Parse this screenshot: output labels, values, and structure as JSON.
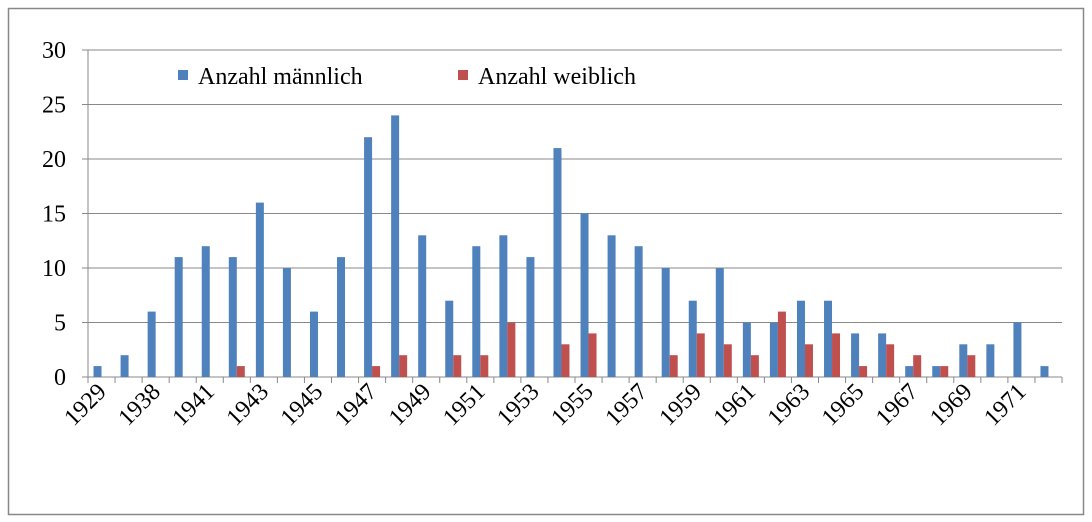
{
  "chart_data": {
    "type": "bar",
    "categories": [
      "1929",
      null,
      "1938",
      null,
      "1941",
      null,
      "1943",
      null,
      "1945",
      null,
      "1947",
      null,
      "1949",
      null,
      "1951",
      null,
      "1953",
      null,
      "1955",
      null,
      "1957",
      null,
      "1959",
      null,
      "1961",
      null,
      "1963",
      null,
      "1965",
      null,
      "1967",
      null,
      "1969",
      null,
      "1971",
      null
    ],
    "series": [
      {
        "name": "Anzahl männlich",
        "color": "#4f81bd",
        "values": [
          1,
          2,
          6,
          11,
          12,
          11,
          16,
          10,
          6,
          11,
          22,
          24,
          13,
          7,
          12,
          13,
          11,
          21,
          15,
          13,
          12,
          10,
          7,
          10,
          5,
          5,
          7,
          7,
          4,
          4,
          1,
          1,
          3,
          3,
          5,
          1
        ]
      },
      {
        "name": "Anzahl weiblich",
        "color": "#c0504d",
        "values": [
          0,
          0,
          0,
          0,
          0,
          1,
          0,
          0,
          0,
          0,
          1,
          2,
          0,
          2,
          2,
          5,
          0,
          3,
          4,
          0,
          0,
          2,
          4,
          3,
          2,
          6,
          3,
          4,
          1,
          3,
          2,
          1,
          2,
          0,
          0,
          0
        ]
      }
    ],
    "ylim": [
      0,
      30
    ],
    "yticks": [
      0,
      5,
      10,
      15,
      20,
      25,
      30
    ],
    "grid": true,
    "legend": "top"
  }
}
